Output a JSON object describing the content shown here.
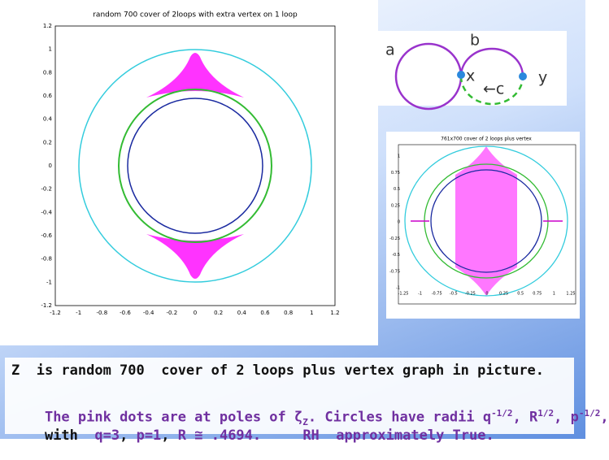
{
  "plot_main": {
    "title": "random 700 cover of 2loops with extra vertex on 1 loop",
    "xticks": [
      "-1.2",
      "-1",
      "-0.8",
      "-0.6",
      "-0.4",
      "-0.2",
      "0",
      "0.2",
      "0.4",
      "0.6",
      "0.8",
      "1",
      "1.2"
    ],
    "yticks": [
      "1.2",
      "1",
      "0.8",
      "0.6",
      "0.4",
      "0.2",
      "0",
      "-0.2",
      "-0.4",
      "-0.6",
      "-0.8",
      "-1",
      "-1.2"
    ]
  },
  "diagram": {
    "labels": [
      "a",
      "b",
      "x",
      "←c",
      "y"
    ]
  },
  "plot_small": {
    "title": "761x700 cover of 2 loops plus vertex",
    "xticks": [
      "-1.25",
      "-1",
      "-0.75",
      "-0.5",
      "-0.25",
      "0",
      "0.25",
      "0.5",
      "0.75",
      "1",
      "1.25"
    ],
    "yticks": [
      "1",
      "0.75",
      "0.5",
      "0.25",
      "0",
      "-0.25",
      "-0.5",
      "-0.75",
      "-1"
    ]
  },
  "caption": {
    "line1": "Z  is random 700  cover of 2 loops plus vertex graph in picture.",
    "line2": [
      "The pink dots are at poles of ",
      "ζ",
      "Z",
      ". Circles have radii ",
      "q",
      "-1/2",
      ", ",
      "R",
      "1/2",
      ", ",
      "p",
      "-1/2",
      ","
    ],
    "line3": [
      "with  ",
      "q=3",
      ", ",
      "p=1",
      ", ",
      "R ≅ .4694.",
      "     RH  approximately True."
    ]
  }
}
